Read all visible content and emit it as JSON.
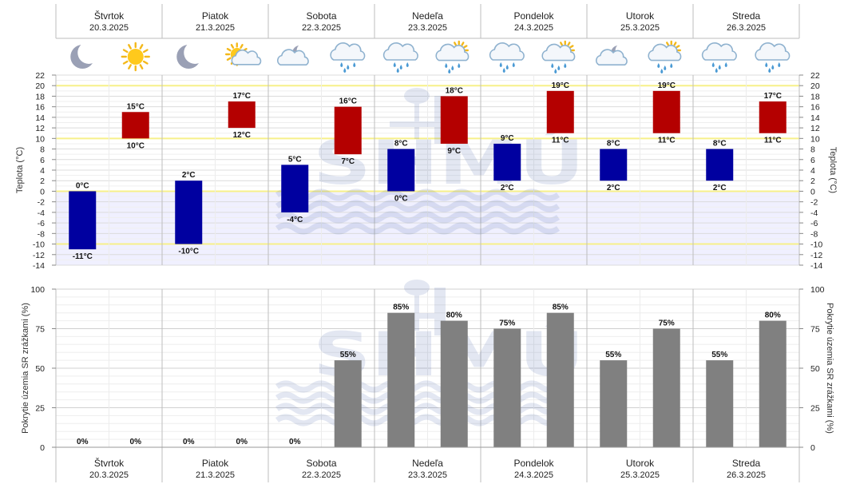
{
  "chart_data": [
    {
      "type": "bar",
      "subtype": "floating-range",
      "ylabel": "Teplota (°C)",
      "ylim": [
        -14,
        22
      ],
      "yticks": [
        22,
        20,
        18,
        16,
        14,
        12,
        10,
        8,
        6,
        4,
        2,
        0,
        -2,
        -4,
        -6,
        -8,
        -10,
        -12,
        -14
      ],
      "highlight_lines": [
        20,
        10,
        0,
        -10
      ],
      "colors": {
        "night": "#0000a0",
        "day": "#b40000",
        "highlight": "#f7f08a",
        "below_zero_bg": "#f0f0ff"
      },
      "series": [
        {
          "name": "",
          "period": "night",
          "min": [
            -11,
            -10,
            -4,
            0,
            2,
            2,
            2
          ],
          "max": [
            0,
            2,
            5,
            8,
            9,
            8,
            8
          ]
        },
        {
          "name": "",
          "period": "day",
          "min": [
            10,
            12,
            7,
            9,
            11,
            11,
            11
          ],
          "max": [
            15,
            17,
            16,
            18,
            19,
            19,
            17
          ]
        }
      ],
      "value_labels": {
        "night_max": [
          "0°C",
          "2°C",
          "5°C",
          "8°C",
          "9°C",
          "8°C",
          "8°C"
        ],
        "night_min": [
          "-11°C",
          "-10°C",
          "-4°C",
          "0°C",
          "2°C",
          "2°C",
          "2°C"
        ],
        "day_max": [
          "15°C",
          "17°C",
          "16°C",
          "18°C",
          "19°C",
          "19°C",
          "17°C"
        ],
        "day_min": [
          "10°C",
          "12°C",
          "7°C",
          "9°C",
          "11°C",
          "11°C",
          "11°C"
        ]
      }
    },
    {
      "type": "bar",
      "ylabel": "Pokrytie územia SR zrážkami (%)",
      "ylim": [
        0,
        100
      ],
      "yticks": [
        100,
        75,
        50,
        25,
        0
      ],
      "colors": {
        "bar": "#808080"
      },
      "series": [
        {
          "name": "",
          "period": "night",
          "values": [
            0,
            0,
            0,
            85,
            75,
            55,
            55
          ],
          "labels": [
            "0%",
            "0%",
            "0%",
            "85%",
            "75%",
            "55%",
            "55%"
          ]
        },
        {
          "name": "",
          "period": "day",
          "values": [
            0,
            0,
            55,
            80,
            85,
            75,
            80
          ],
          "labels": [
            "0%",
            "0%",
            "55%",
            "80%",
            "85%",
            "75%",
            "80%"
          ]
        }
      ]
    }
  ],
  "days": [
    {
      "name": "Štvrtok",
      "date": "20.3.2025"
    },
    {
      "name": "Piatok",
      "date": "21.3.2025"
    },
    {
      "name": "Sobota",
      "date": "22.3.2025"
    },
    {
      "name": "Nedeľa",
      "date": "23.3.2025"
    },
    {
      "name": "Pondelok",
      "date": "24.3.2025"
    },
    {
      "name": "Utorok",
      "date": "25.3.2025"
    },
    {
      "name": "Streda",
      "date": "26.3.2025"
    }
  ],
  "weather_icons": [
    [
      "moon-icon",
      "sun-icon"
    ],
    [
      "moon-icon",
      "sun-cloud-icon"
    ],
    [
      "moon-cloud-icon",
      "rain-cloud-icon"
    ],
    [
      "rain-cloud-icon",
      "sun-rain-cloud-icon"
    ],
    [
      "rain-cloud-icon",
      "sun-rain-cloud-icon"
    ],
    [
      "moon-cloud-icon",
      "sun-rain-cloud-icon"
    ],
    [
      "rain-cloud-icon",
      "rain-cloud-icon"
    ]
  ],
  "watermark": "SHMÚ"
}
